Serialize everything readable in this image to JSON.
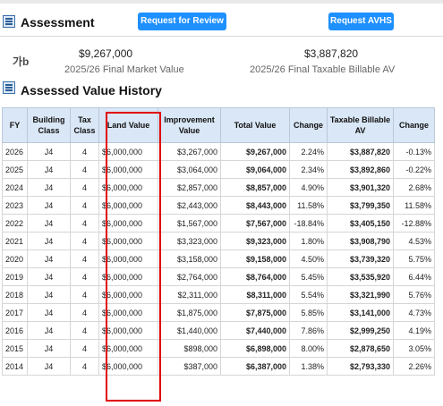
{
  "assessment": {
    "title": "Assessment",
    "request_review_label": "Request for Review",
    "request_avhs_label": "Request AVHS",
    "market_value": "$9,267,000",
    "market_label": "2025/26 Final Market Value",
    "taxable_value": "$3,887,820",
    "taxable_label": "2025/26 Final Taxable Billable AV",
    "translate_icon_text": "가",
    "translate_icon_text2": "b"
  },
  "history": {
    "title": "Assessed Value History",
    "columns": [
      "FY",
      "Building Class",
      "Tax Class",
      "Land Value",
      "Improvement Value",
      "Total Value",
      "Change",
      "Taxable Billable AV",
      "Change"
    ],
    "rows": [
      [
        "2026",
        "J4",
        "4",
        "$6,000,000",
        "$3,267,000",
        "$9,267,000",
        "2.24%",
        "$3,887,820",
        "-0.13%"
      ],
      [
        "2025",
        "J4",
        "4",
        "$6,000,000",
        "$3,064,000",
        "$9,064,000",
        "2.34%",
        "$3,892,860",
        "-0.22%"
      ],
      [
        "2024",
        "J4",
        "4",
        "$6,000,000",
        "$2,857,000",
        "$8,857,000",
        "4.90%",
        "$3,901,320",
        "2.68%"
      ],
      [
        "2023",
        "J4",
        "4",
        "$6,000,000",
        "$2,443,000",
        "$8,443,000",
        "11.58%",
        "$3,799,350",
        "11.58%"
      ],
      [
        "2022",
        "J4",
        "4",
        "$6,000,000",
        "$1,567,000",
        "$7,567,000",
        "-18.84%",
        "$3,405,150",
        "-12.88%"
      ],
      [
        "2021",
        "J4",
        "4",
        "$6,000,000",
        "$3,323,000",
        "$9,323,000",
        "1.80%",
        "$3,908,790",
        "4.53%"
      ],
      [
        "2020",
        "J4",
        "4",
        "$6,000,000",
        "$3,158,000",
        "$9,158,000",
        "4.50%",
        "$3,739,320",
        "5.75%"
      ],
      [
        "2019",
        "J4",
        "4",
        "$6,000,000",
        "$2,764,000",
        "$8,764,000",
        "5.45%",
        "$3,535,920",
        "6.44%"
      ],
      [
        "2018",
        "J4",
        "4",
        "$6,000,000",
        "$2,311,000",
        "$8,311,000",
        "5.54%",
        "$3,321,990",
        "5.76%"
      ],
      [
        "2017",
        "J4",
        "4",
        "$6,000,000",
        "$1,875,000",
        "$7,875,000",
        "5.85%",
        "$3,141,000",
        "4.73%"
      ],
      [
        "2016",
        "J4",
        "4",
        "$6,000,000",
        "$1,440,000",
        "$7,440,000",
        "7.86%",
        "$2,999,250",
        "4.19%"
      ],
      [
        "2015",
        "J4",
        "4",
        "$6,000,000",
        "$898,000",
        "$6,898,000",
        "8.00%",
        "$2,878,650",
        "3.05%"
      ],
      [
        "2014",
        "J4",
        "4",
        "$6,000,000",
        "$387,000",
        "$6,387,000",
        "1.38%",
        "$2,793,330",
        "2.26%"
      ]
    ]
  },
  "colors": {
    "button": "#1e90ff",
    "header_bg": "#dae7f6",
    "highlight": "#e00000"
  },
  "icons": {
    "section": "list-icon",
    "translate": "translate-icon"
  }
}
